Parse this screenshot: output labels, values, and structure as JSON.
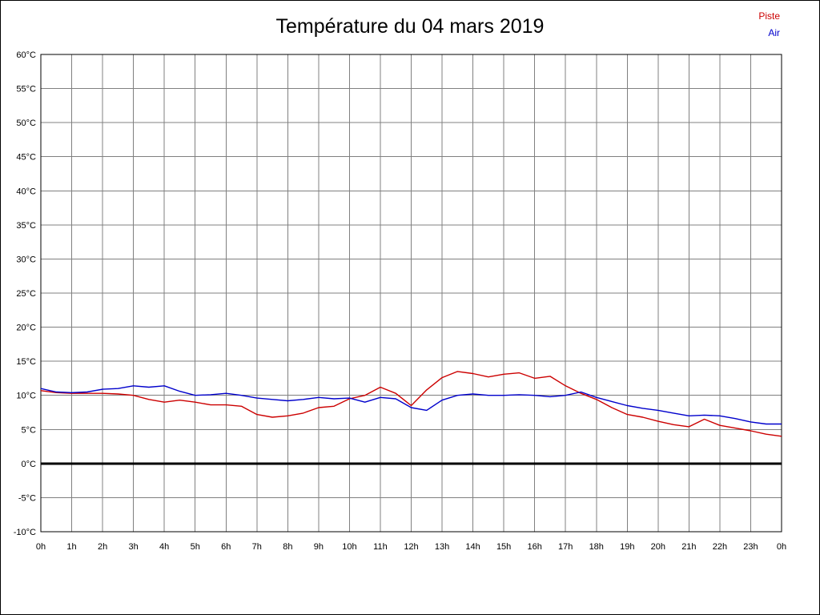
{
  "title": "Température du 04 mars 2019",
  "legend": [
    {
      "label": "Piste",
      "color": "#cc0000"
    },
    {
      "label": "Air",
      "color": "#0000cc"
    }
  ],
  "chart_data": {
    "type": "line",
    "title": "Température du 04 mars 2019",
    "xlabel": "",
    "ylabel": "",
    "ylim": [
      -10,
      60
    ],
    "ytick_step": 5,
    "grid": true,
    "zero_line": true,
    "legend_position": "top-right",
    "xtick_labels": [
      "0h",
      "1h",
      "2h",
      "3h",
      "4h",
      "5h",
      "6h",
      "7h",
      "8h",
      "9h",
      "10h",
      "11h",
      "12h",
      "13h",
      "14h",
      "15h",
      "16h",
      "17h",
      "18h",
      "19h",
      "20h",
      "21h",
      "22h",
      "23h",
      "0h"
    ],
    "ytick_labels": [
      "60°C",
      "55°C",
      "50°C",
      "45°C",
      "40°C",
      "35°C",
      "30°C",
      "25°C",
      "20°C",
      "15°C",
      "10°C",
      "5°C",
      "0°C",
      "-5°C",
      "-10°C"
    ],
    "x": [
      0,
      0.5,
      1,
      1.5,
      2,
      2.5,
      3,
      3.5,
      4,
      4.5,
      5,
      5.5,
      6,
      6.5,
      7,
      7.5,
      8,
      8.5,
      9,
      9.5,
      10,
      10.5,
      11,
      11.5,
      12,
      12.5,
      13,
      13.5,
      14,
      14.5,
      15,
      15.5,
      16,
      16.5,
      17,
      17.5,
      18,
      18.5,
      19,
      19.5,
      20,
      20.5,
      21,
      21.5,
      22,
      22.5,
      23,
      23.5,
      24
    ],
    "series": [
      {
        "name": "Piste",
        "color": "#cc0000",
        "values": [
          10.7,
          10.4,
          10.3,
          10.3,
          10.3,
          10.2,
          10.0,
          9.4,
          9.0,
          9.3,
          9.0,
          8.6,
          8.6,
          8.4,
          7.2,
          6.8,
          7.0,
          7.4,
          8.2,
          8.4,
          9.5,
          10.0,
          11.2,
          10.3,
          8.5,
          10.8,
          12.6,
          13.5,
          13.2,
          12.7,
          13.1,
          13.3,
          12.5,
          12.8,
          11.4,
          10.3,
          9.4,
          8.2,
          7.2,
          6.8,
          6.2,
          5.7,
          5.4,
          6.5,
          5.6,
          5.2,
          4.8,
          4.3,
          4.0
        ]
      },
      {
        "name": "Air",
        "color": "#0000cc",
        "values": [
          11.0,
          10.5,
          10.4,
          10.5,
          10.9,
          11.0,
          11.4,
          11.2,
          11.4,
          10.6,
          10.0,
          10.1,
          10.3,
          10.0,
          9.6,
          9.4,
          9.2,
          9.4,
          9.7,
          9.5,
          9.6,
          9.0,
          9.7,
          9.5,
          8.2,
          7.8,
          9.3,
          10.0,
          10.2,
          10.0,
          10.0,
          10.1,
          10.0,
          9.8,
          10.0,
          10.5,
          9.7,
          9.1,
          8.5,
          8.1,
          7.8,
          7.4,
          7.0,
          7.1,
          7.0,
          6.6,
          6.1,
          5.8,
          5.8
        ]
      }
    ]
  }
}
